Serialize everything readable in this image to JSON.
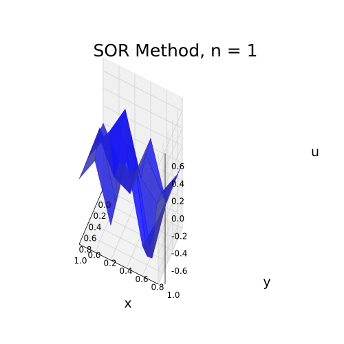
{
  "chart_data": {
    "type": "surface3d",
    "title": "SOR Method, n = 1",
    "xlabel": "x",
    "ylabel": "y",
    "zlabel": "u",
    "xlim": [
      0.0,
      1.0
    ],
    "ylim": [
      0.0,
      1.0
    ],
    "zlim": [
      -0.75,
      0.75
    ],
    "x_ticks": [
      "0.0",
      "0.2",
      "0.4",
      "0.6",
      "0.8",
      "1.0"
    ],
    "y_ticks": [
      "0.0",
      "0.2",
      "0.4",
      "0.6",
      "0.8",
      "1.0"
    ],
    "z_ticks": [
      "-0.6",
      "-0.4",
      "-0.2",
      "0.0",
      "0.2",
      "0.4",
      "0.6"
    ],
    "surface_color": "#0000ff",
    "grid": true,
    "x": [
      0.0,
      0.2,
      0.4,
      0.6,
      0.8,
      1.0
    ],
    "y": [
      0.0,
      0.2,
      0.4,
      0.6,
      0.8,
      1.0
    ],
    "u": [
      [
        0.0,
        -0.35,
        -0.4,
        0.1,
        -0.55,
        0.0
      ],
      [
        0.0,
        -0.4,
        -0.5,
        0.05,
        -0.3,
        0.0
      ],
      [
        0.0,
        0.25,
        0.6,
        -0.1,
        -0.3,
        0.0
      ],
      [
        0.0,
        0.3,
        0.45,
        0.2,
        -0.8,
        0.0
      ],
      [
        0.0,
        0.55,
        -0.2,
        0.65,
        -0.65,
        0.0
      ],
      [
        0.0,
        0.3,
        -0.35,
        0.5,
        -0.4,
        0.0
      ]
    ]
  }
}
